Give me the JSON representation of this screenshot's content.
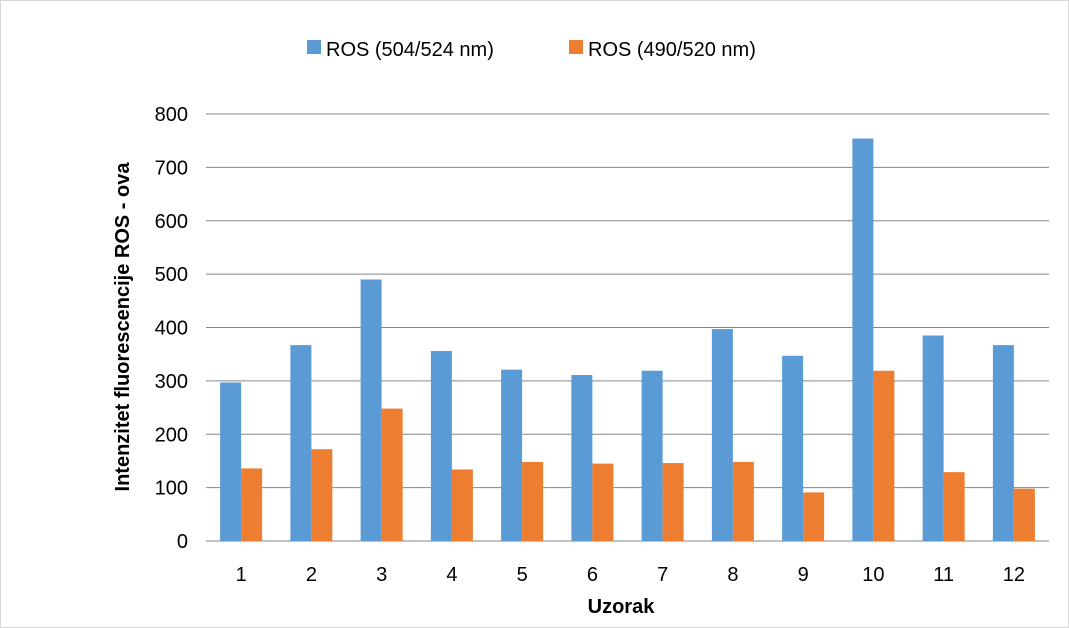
{
  "chart_data": {
    "type": "bar",
    "title": "",
    "xlabel": "Uzorak",
    "ylabel": "Intenzitet fluorescencije ROS - ova",
    "ylim": [
      0,
      800
    ],
    "yticks": [
      0,
      100,
      200,
      300,
      400,
      500,
      600,
      700,
      800
    ],
    "grid": true,
    "legend_position": "top",
    "categories": [
      "1",
      "2",
      "3",
      "4",
      "5",
      "6",
      "7",
      "8",
      "9",
      "10",
      "11",
      "12"
    ],
    "series": [
      {
        "name": "ROS (504/524 nm)",
        "color": "#5b9bd5",
        "values": [
          297,
          367,
          490,
          356,
          321,
          311,
          319,
          397,
          347,
          754,
          385,
          367
        ]
      },
      {
        "name": "ROS (490/520 nm)",
        "color": "#ed7d31",
        "values": [
          136,
          172,
          248,
          134,
          148,
          145,
          146,
          148,
          91,
          319,
          129,
          98
        ]
      }
    ]
  }
}
